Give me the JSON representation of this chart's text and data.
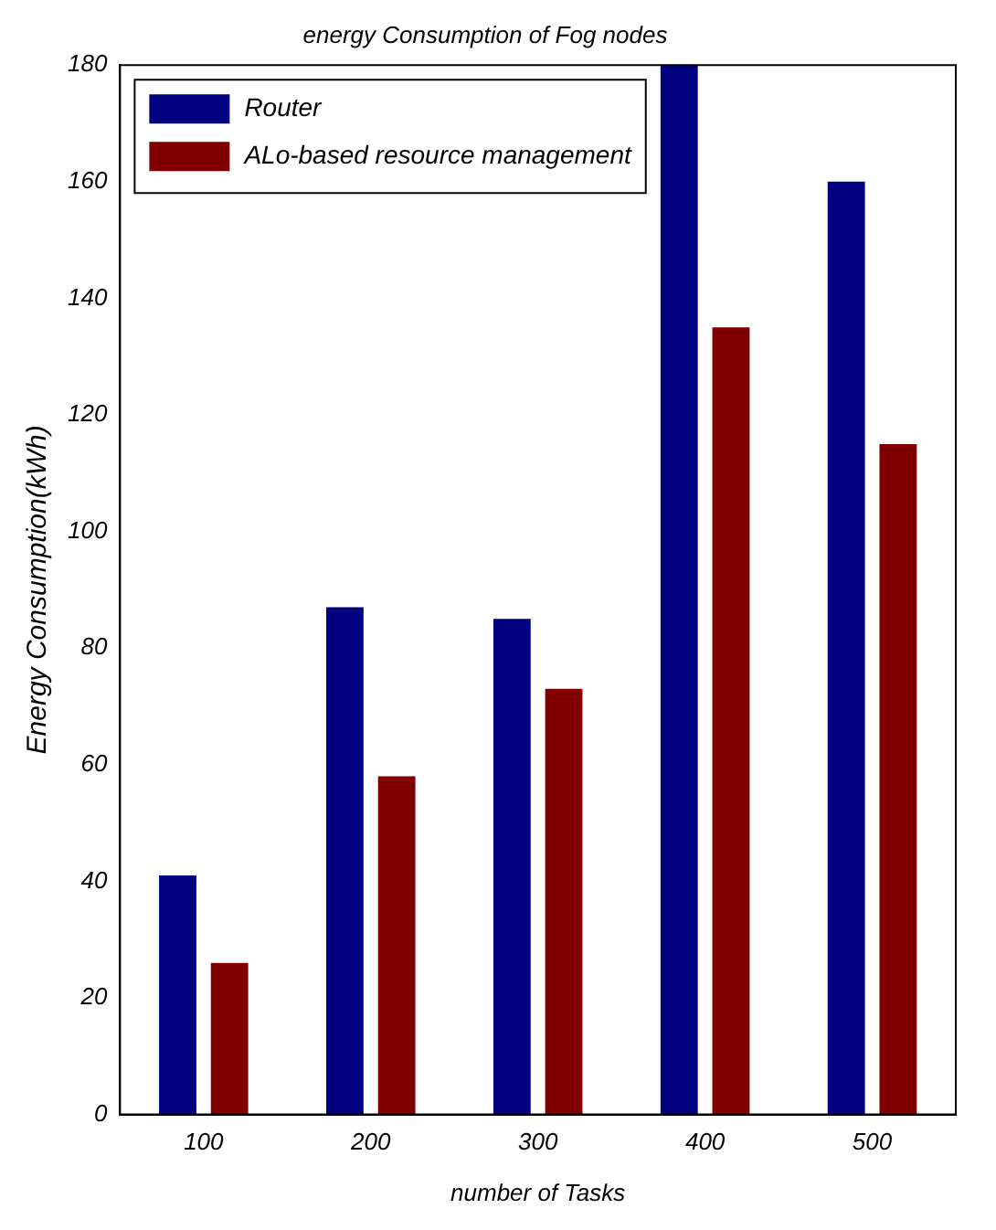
{
  "chart_data": {
    "type": "bar",
    "title": "energy Consumption of Fog nodes",
    "xlabel": "number of Tasks",
    "ylabel": "Energy Consumption(kWh)",
    "categories": [
      "100",
      "200",
      "300",
      "400",
      "500"
    ],
    "series": [
      {
        "name": "Router",
        "color": "#000080",
        "values": [
          41,
          87,
          85,
          180,
          160
        ]
      },
      {
        "name": "ALo-based resource management",
        "color": "#800000",
        "values": [
          26,
          58,
          73,
          135,
          115
        ]
      }
    ],
    "ylim": [
      0,
      180
    ],
    "yticks": [
      0,
      20,
      40,
      60,
      80,
      100,
      120,
      140,
      160,
      180
    ],
    "grid": false,
    "legend": "top left"
  }
}
